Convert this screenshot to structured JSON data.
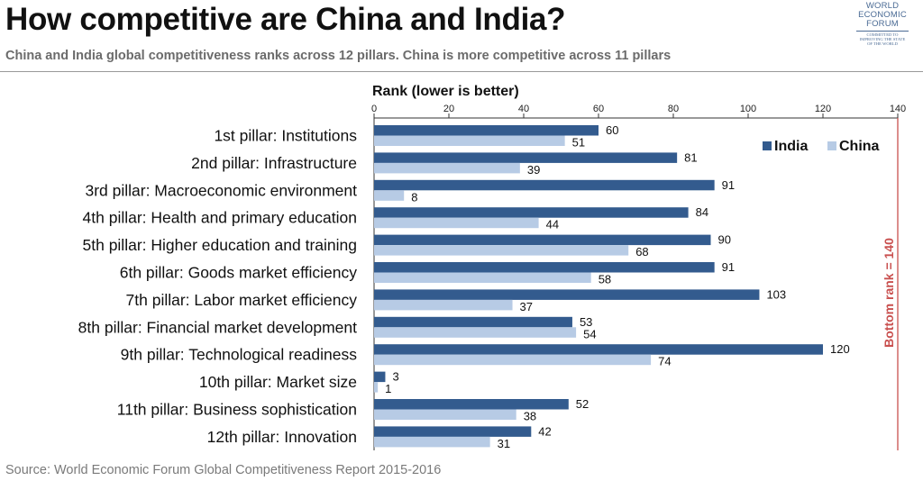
{
  "title": "How competitive are China and India?",
  "subtitle": "China and India global competitiveness ranks across 12 pillars. China is more competitive across 11 pillars",
  "source": "Source: World Economic Forum Global Competitiveness Report 2015-2016",
  "logo": {
    "name_lines": [
      "WORLD",
      "ECONOMIC",
      "FORUM"
    ],
    "tagline_lines": [
      "COMMITTED TO",
      "IMPROVING THE STATE",
      "OF THE WORLD"
    ]
  },
  "colors": {
    "india": "#335b8e",
    "china": "#b7cbe5",
    "reference_line": "#c9504f",
    "axis": "#333333"
  },
  "chart_data": {
    "type": "bar",
    "orientation": "horizontal",
    "xlabel": "Rank (lower is better)",
    "xlim": [
      0,
      140
    ],
    "x_ticks": [
      0,
      20,
      40,
      60,
      80,
      100,
      120,
      140
    ],
    "grid": false,
    "legend_position": "top-right",
    "categories": [
      "1st pillar: Institutions",
      "2nd pillar: Infrastructure",
      "3rd pillar: Macroeconomic environment",
      "4th pillar: Health and primary education",
      "5th pillar: Higher education and training",
      "6th pillar: Goods market efficiency",
      "7th pillar: Labor market efficiency",
      "8th pillar: Financial market development",
      "9th pillar: Technological readiness",
      "10th pillar: Market size",
      "11th pillar: Business sophistication",
      "12th pillar: Innovation"
    ],
    "series": [
      {
        "name": "India",
        "values": [
          60,
          81,
          91,
          84,
          90,
          91,
          103,
          53,
          120,
          3,
          52,
          42
        ]
      },
      {
        "name": "China",
        "values": [
          51,
          39,
          8,
          44,
          68,
          58,
          37,
          54,
          74,
          1,
          38,
          31
        ]
      }
    ],
    "reference_line": {
      "value": 140,
      "label": "Bottom rank = 140"
    }
  }
}
